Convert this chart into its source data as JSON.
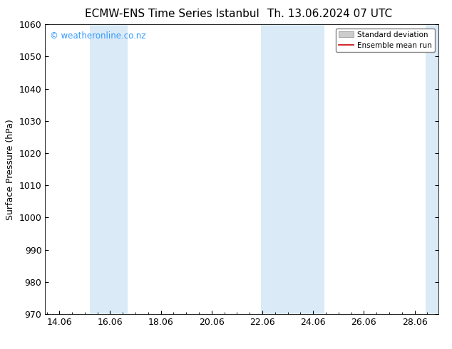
{
  "title_left": "ECMW-ENS Time Series Istanbul",
  "title_right": "Th. 13.06.2024 07 UTC",
  "ylabel": "Surface Pressure (hPa)",
  "ylim": [
    970,
    1060
  ],
  "yticks": [
    970,
    980,
    990,
    1000,
    1010,
    1020,
    1030,
    1040,
    1050,
    1060
  ],
  "xlim_start": 13.5,
  "xlim_end": 29.0,
  "xtick_positions": [
    14.06,
    16.06,
    18.06,
    20.06,
    22.06,
    24.06,
    26.06,
    28.06
  ],
  "xtick_labels": [
    "14.06",
    "16.06",
    "18.06",
    "20.06",
    "22.06",
    "24.06",
    "26.06",
    "28.06"
  ],
  "shaded_bands": [
    {
      "x_start": 15.25,
      "x_end": 16.75
    },
    {
      "x_start": 22.0,
      "x_end": 23.0
    },
    {
      "x_start": 23.0,
      "x_end": 24.5
    }
  ],
  "right_shade": {
    "x_start": 28.5,
    "x_end": 29.0
  },
  "shade_color": "#daeaf6",
  "watermark_text": "© weatheronline.co.nz",
  "watermark_color": "#3399ff",
  "legend_std_color": "#cccccc",
  "legend_mean_color": "#cc0000",
  "bg_color": "#ffffff",
  "title_fontsize": 11,
  "ylabel_fontsize": 9,
  "tick_fontsize": 9,
  "watermark_fontsize": 8.5
}
